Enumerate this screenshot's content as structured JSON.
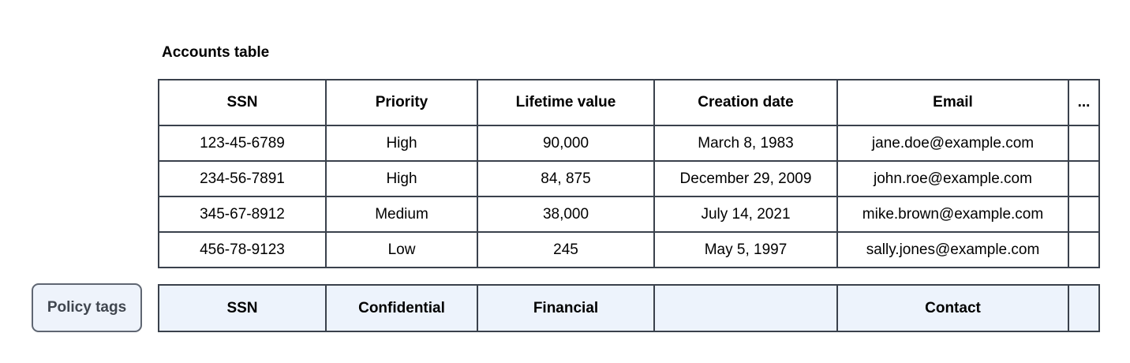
{
  "title": "Accounts table",
  "accounts_table": {
    "columns": [
      "SSN",
      "Priority",
      "Lifetime value",
      "Creation date",
      "Email",
      "..."
    ],
    "rows": [
      [
        "123-45-6789",
        "High",
        "90,000",
        "March 8, 1983",
        "jane.doe@example.com",
        ""
      ],
      [
        "234-56-7891",
        "High",
        "84, 875",
        "December 29, 2009",
        "john.roe@example.com",
        ""
      ],
      [
        "345-67-8912",
        "Medium",
        "38,000",
        "July 14, 2021",
        "mike.brown@example.com",
        ""
      ],
      [
        "456-78-9123",
        "Low",
        "245",
        "May 5, 1997",
        "sally.jones@example.com",
        ""
      ]
    ]
  },
  "policy_tags": {
    "button_label": "Policy tags",
    "tags": [
      "SSN",
      "Confidential",
      "Financial",
      "",
      "Contact",
      ""
    ]
  },
  "colors": {
    "table_border": "#3a414c",
    "policy_fill": "#edf3fc",
    "button_fill": "#eef3fb",
    "button_border": "#5f6672",
    "button_text": "#40464f"
  }
}
